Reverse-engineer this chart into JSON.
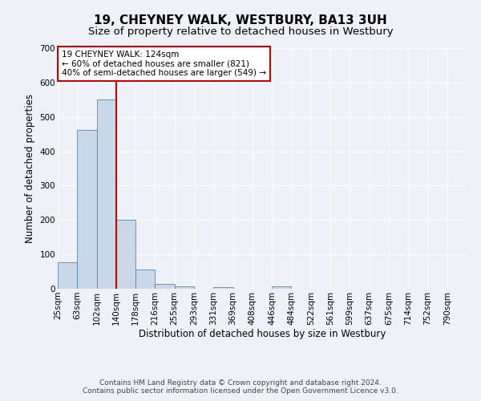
{
  "title": "19, CHEYNEY WALK, WESTBURY, BA13 3UH",
  "subtitle": "Size of property relative to detached houses in Westbury",
  "xlabel": "Distribution of detached houses by size in Westbury",
  "ylabel": "Number of detached properties",
  "bar_labels": [
    "25sqm",
    "63sqm",
    "102sqm",
    "140sqm",
    "178sqm",
    "216sqm",
    "255sqm",
    "293sqm",
    "331sqm",
    "369sqm",
    "408sqm",
    "446sqm",
    "484sqm",
    "522sqm",
    "561sqm",
    "599sqm",
    "637sqm",
    "675sqm",
    "714sqm",
    "752sqm",
    "790sqm"
  ],
  "bar_values": [
    78,
    463,
    551,
    201,
    57,
    14,
    7,
    0,
    5,
    0,
    0,
    7,
    0,
    0,
    0,
    0,
    0,
    0,
    0,
    0,
    0
  ],
  "bar_color": "#c8d8e8",
  "bar_edge_color": "#5588aa",
  "vline_x": 3,
  "vline_color": "#cc0000",
  "ylim": [
    0,
    700
  ],
  "yticks": [
    0,
    100,
    200,
    300,
    400,
    500,
    600,
    700
  ],
  "annotation_title": "19 CHEYNEY WALK: 124sqm",
  "annotation_line1": "← 60% of detached houses are smaller (821)",
  "annotation_line2": "40% of semi-detached houses are larger (549) →",
  "annotation_box_color": "#ffffff",
  "annotation_box_edge_color": "#cc0000",
  "footer_line1": "Contains HM Land Registry data © Crown copyright and database right 2024.",
  "footer_line2": "Contains public sector information licensed under the Open Government Licence v3.0.",
  "background_color": "#eef2f8",
  "plot_bg_color": "#eef2f8",
  "grid_color": "#ffffff",
  "title_fontsize": 11,
  "subtitle_fontsize": 9.5,
  "axis_label_fontsize": 8.5,
  "tick_fontsize": 7.5,
  "footer_fontsize": 6.5
}
